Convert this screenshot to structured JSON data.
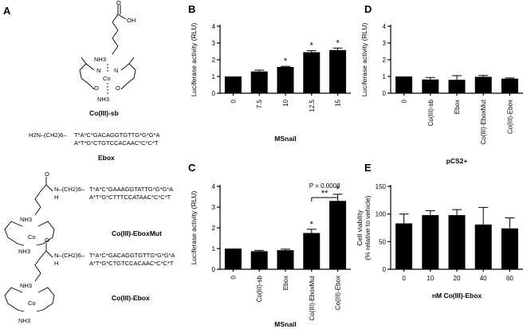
{
  "panels": {
    "A": {
      "letter": "A",
      "structures": {
        "sb": {
          "name": "Co(III)-sb",
          "oh": "OH",
          "o": "O",
          "nh3_top": "NH3",
          "nh3_bot": "NH3",
          "co": "Co",
          "n": "N"
        },
        "ebox": {
          "name": "Ebox",
          "linker": "H2N–(CH2)6–",
          "line1": "T*A*C*GACAGGTGTTG*G*G*A",
          "line2": "A*T*G*CTGTCCACAAC*C*C*T"
        },
        "mut": {
          "name": "Co(III)-EboxMut",
          "nh": "N–(CH2)6–",
          "h": "H",
          "o": "O",
          "line1": "T*A*C*GAAAGGTATTG*G*G*A",
          "line2": "A*T*G*CTTTCCATAAC*C*C*T"
        },
        "cobox": {
          "name": "Co(III)-Ebox",
          "nh": "N–(CH2)6–",
          "h": "H",
          "o": "O",
          "line1": "T*A*C*GACAGGTGTTG*G*G*A",
          "line2": "A*T*G*CTGTCCACAAC*C*C*T"
        }
      }
    }
  },
  "chart_data": [
    {
      "panel": "B",
      "type": "bar",
      "categories": [
        "0",
        "7.5",
        "10",
        "12.5",
        "15"
      ],
      "values": [
        1.0,
        1.3,
        1.57,
        2.45,
        2.58
      ],
      "errors": [
        0.0,
        0.08,
        0.04,
        0.09,
        0.12
      ],
      "significance": [
        "",
        "",
        "*",
        "*",
        "*"
      ],
      "ylabel": "Luciferase activity (RLU)",
      "xlabel": "MSnail",
      "ylim": [
        0,
        4
      ],
      "yticks": [
        0,
        1,
        2,
        3,
        4
      ]
    },
    {
      "panel": "C",
      "type": "bar",
      "categories": [
        "0",
        "Co(III)-sb",
        "Ebox",
        "Co(III)-EboxMut",
        "Co(III)-Ebox"
      ],
      "values": [
        1.0,
        0.87,
        0.92,
        1.75,
        3.3
      ],
      "errors": [
        0.0,
        0.04,
        0.05,
        0.18,
        0.32
      ],
      "significance": [
        "",
        "",
        "",
        "*",
        "*"
      ],
      "bracket": {
        "from": 3,
        "to": 4,
        "label": "**",
        "pvalue": "P = 0.0008"
      },
      "ylabel": "Luciferase activity (RLU)",
      "xlabel": "MSnail",
      "ylim": [
        0,
        4
      ],
      "yticks": [
        0,
        1,
        2,
        3,
        4
      ]
    },
    {
      "panel": "D",
      "type": "bar",
      "categories": [
        "0",
        "Co(III)-sb",
        "Ebox",
        "Co(III)-EboxMut",
        "Co(III)-Ebox"
      ],
      "values": [
        1.0,
        0.82,
        0.8,
        0.98,
        0.87
      ],
      "errors": [
        0.0,
        0.12,
        0.25,
        0.08,
        0.04
      ],
      "significance": [
        "",
        "",
        "",
        "",
        ""
      ],
      "ylabel": "Luciferase activity (RLU)",
      "xlabel": "pCS2+",
      "ylim": [
        0,
        4
      ],
      "yticks": [
        0,
        1,
        2,
        3,
        4
      ]
    },
    {
      "panel": "E",
      "type": "bar",
      "categories": [
        "0",
        "10",
        "20",
        "40",
        "60"
      ],
      "values": [
        83,
        98,
        98,
        81,
        74
      ],
      "errors": [
        17,
        8,
        10,
        31,
        19
      ],
      "significance": [
        "",
        "",
        "",
        "",
        ""
      ],
      "ylabel": "Cell viability\n(% relative to vehicle)",
      "xlabel": "nM Co(III)-Ebox",
      "ylim": [
        0,
        150
      ],
      "yticks": [
        0,
        50,
        100,
        150
      ]
    }
  ]
}
